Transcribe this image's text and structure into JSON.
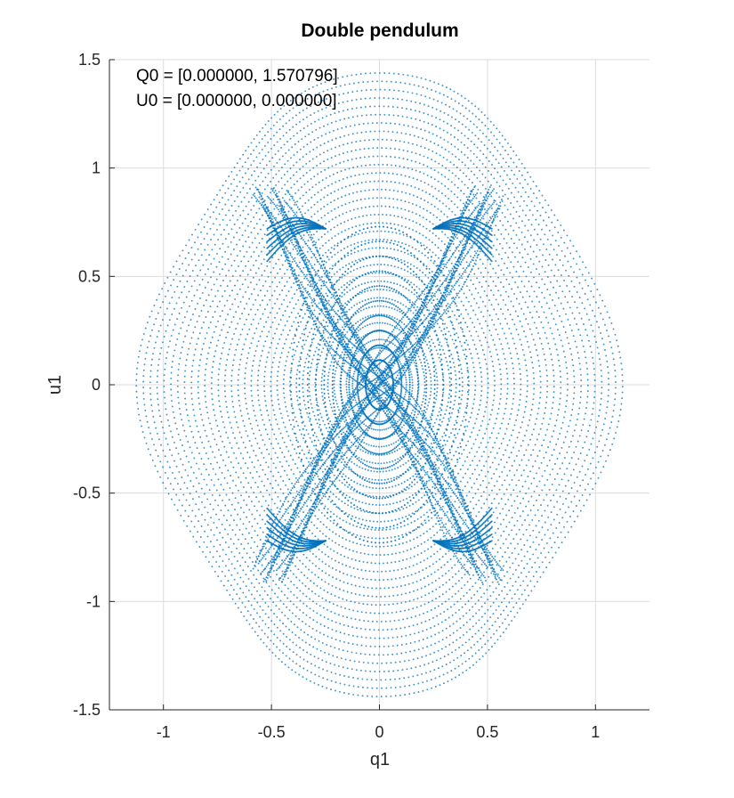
{
  "chart_data": {
    "type": "scatter",
    "title": "Double pendulum",
    "xlabel": "q1",
    "ylabel": "u1",
    "xlim": [
      -1.25,
      1.25
    ],
    "ylim": [
      -1.5,
      1.5
    ],
    "x_ticks": [
      -1,
      -0.5,
      0,
      0.5,
      1
    ],
    "x_tick_labels": [
      "-1",
      "-0.5",
      "0",
      "0.5",
      "1"
    ],
    "y_ticks": [
      -1.5,
      -1,
      -0.5,
      0,
      0.5,
      1,
      1.5
    ],
    "y_tick_labels": [
      "-1.5",
      "-1",
      "-0.5",
      "0",
      "0.5",
      "1",
      "1.5"
    ],
    "grid": true,
    "annotations": [
      "Q0 = [0.000000, 1.570796]",
      "U0 = [0.000000, 0.000000]"
    ],
    "series": [
      {
        "color": "#0072BD",
        "marker": "dot",
        "description_points": [
          [
            -1.03,
            0.0
          ],
          [
            -0.95,
            0.45
          ],
          [
            -0.75,
            0.85
          ],
          [
            -0.45,
            1.15
          ],
          [
            -0.1,
            1.3
          ],
          [
            0.0,
            1.34
          ],
          [
            0.25,
            1.3
          ],
          [
            0.5,
            1.15
          ],
          [
            0.75,
            0.85
          ],
          [
            0.95,
            0.45
          ],
          [
            1.03,
            0.0
          ],
          [
            0.95,
            -0.45
          ],
          [
            0.75,
            -0.85
          ],
          [
            0.45,
            -1.15
          ],
          [
            0.1,
            -1.3
          ],
          [
            0.0,
            -1.34
          ],
          [
            -0.25,
            -1.3
          ],
          [
            -0.5,
            -1.15
          ],
          [
            -0.75,
            -0.85
          ],
          [
            -0.95,
            -0.45
          ]
        ]
      }
    ]
  },
  "colors": {
    "series": "#0072BD",
    "grid": "#dcdcdc",
    "axis": "#262626"
  }
}
